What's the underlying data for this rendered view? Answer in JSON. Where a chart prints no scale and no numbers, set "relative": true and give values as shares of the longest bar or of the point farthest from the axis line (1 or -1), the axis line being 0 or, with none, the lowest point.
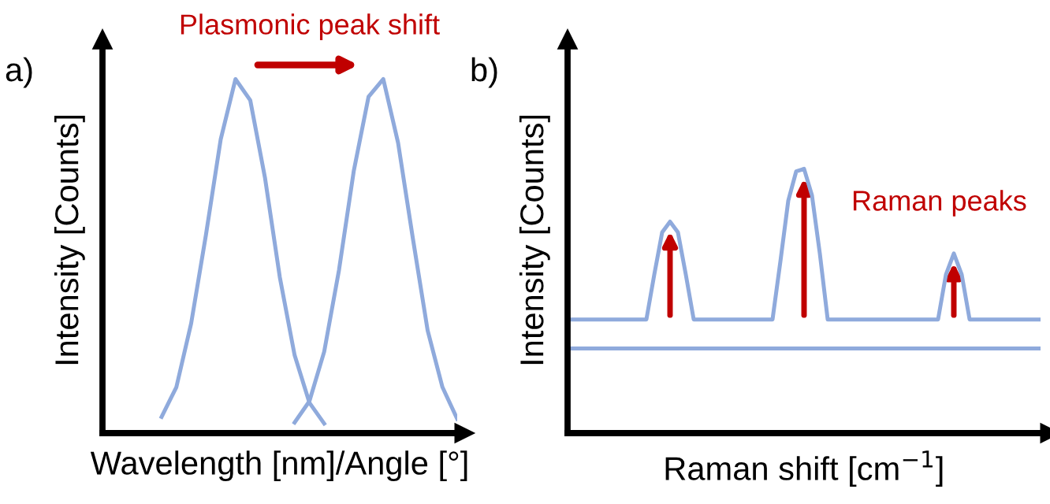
{
  "chart_data": [
    {
      "type": "line",
      "title": "a)",
      "relative": true,
      "xlabel": "Wavelength [nm]/Angle [°]",
      "ylabel": "Intensity [Counts]",
      "legend": false,
      "marker": "none",
      "line_style": "solid",
      "categories": [
        null,
        null,
        null,
        null,
        null,
        null,
        null,
        null,
        null,
        null,
        null,
        null,
        null,
        null,
        null,
        null,
        null,
        null,
        null,
        null,
        null,
        null,
        null,
        null,
        null
      ],
      "series": [
        {
          "color": "#8faadc",
          "values": [
            null,
            null,
            null,
            null,
            0.046,
            0.13,
            0.31,
            0.56,
            0.83,
            1,
            0.94,
            0.72,
            0.44,
            0.22,
            0.086,
            0.027,
            null,
            null,
            null,
            null,
            null,
            null,
            null,
            null,
            null
          ]
        },
        {
          "color": "#8faadc",
          "values": [
            null,
            null,
            null,
            null,
            null,
            null,
            null,
            null,
            null,
            null,
            null,
            null,
            null,
            0.03,
            0.09,
            0.23,
            0.46,
            0.74,
            0.95,
            1,
            0.82,
            0.55,
            0.29,
            0.13,
            0.04
          ]
        }
      ],
      "annotations": [
        "Plasmonic peak shift"
      ]
    },
    {
      "type": "line",
      "title": "b)",
      "relative": true,
      "xlabel": "Raman shift [cm$^{−1}$]",
      "ylabel": "Intensity [Counts]",
      "legend": false,
      "marker": "none",
      "line_style": "solid",
      "categories": [
        null,
        null,
        null,
        null,
        null,
        null,
        null,
        null,
        null,
        null,
        null,
        null,
        null,
        null,
        null,
        null,
        null,
        null,
        null,
        null,
        null,
        null,
        null,
        null,
        null,
        null,
        null,
        null,
        null,
        null,
        null,
        null,
        null,
        null,
        null,
        null,
        null,
        null,
        null,
        null,
        null,
        null,
        null,
        null,
        null,
        null,
        null,
        null,
        null,
        null,
        null,
        null,
        null,
        null,
        null,
        null,
        null,
        null,
        null,
        null,
        null
      ],
      "series": [
        {
          "color": "#8faadc",
          "values": [
            0.43,
            0.43,
            0.43,
            0.43,
            0.43,
            0.43,
            0.43,
            0.43,
            0.43,
            0.43,
            0.43,
            0.6,
            0.76,
            0.8,
            0.76,
            0.6,
            0.43,
            0.43,
            0.43,
            0.43,
            0.43,
            0.43,
            0.43,
            0.43,
            0.43,
            0.43,
            0.43,
            0.65,
            0.88,
            0.99,
            1,
            0.9,
            0.68,
            0.43,
            0.43,
            0.43,
            0.43,
            0.43,
            0.43,
            0.43,
            0.43,
            0.43,
            0.43,
            0.43,
            0.43,
            0.43,
            0.43,
            0.43,
            0.6,
            0.68,
            0.6,
            0.43,
            0.43,
            0.43,
            0.43,
            0.43,
            0.43,
            0.43,
            0.43,
            0.43,
            0.43
          ]
        }
      ],
      "ref_lines": [
        {
          "axis": "y",
          "value": 0.32,
          "color": "#8faadc",
          "line_style": "solid"
        }
      ],
      "annotations": [
        "Raman peaks"
      ]
    }
  ]
}
